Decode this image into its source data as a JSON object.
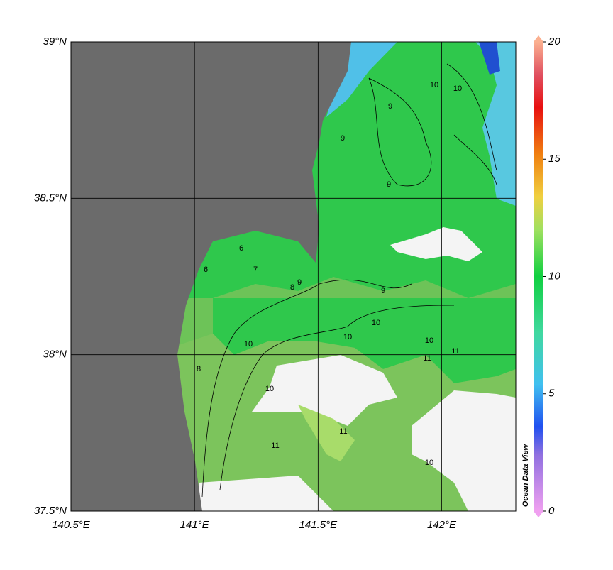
{
  "map": {
    "xlim": [
      140.5,
      142.3
    ],
    "ylim": [
      37.5,
      39
    ],
    "xticks": [
      {
        "value": 140.5,
        "label": "140.5°E"
      },
      {
        "value": 141,
        "label": "141°E"
      },
      {
        "value": 141.5,
        "label": "141.5°E"
      },
      {
        "value": 142,
        "label": "142°E"
      }
    ],
    "yticks": [
      {
        "value": 37.5,
        "label": "37.5°N"
      },
      {
        "value": 38,
        "label": "38°N"
      },
      {
        "value": 38.5,
        "label": "38.5°N"
      },
      {
        "value": 39,
        "label": "39°N"
      }
    ],
    "contour_labels": [
      10,
      10,
      9,
      9,
      9,
      8,
      9,
      10,
      10,
      10,
      11,
      11,
      10,
      10,
      11,
      11,
      6,
      7,
      8,
      6,
      10,
      9
    ]
  },
  "colorbar": {
    "lim": [
      0,
      20
    ],
    "ticks": [
      0,
      5,
      10,
      15,
      20
    ]
  },
  "watermark": "Ocean Data View"
}
